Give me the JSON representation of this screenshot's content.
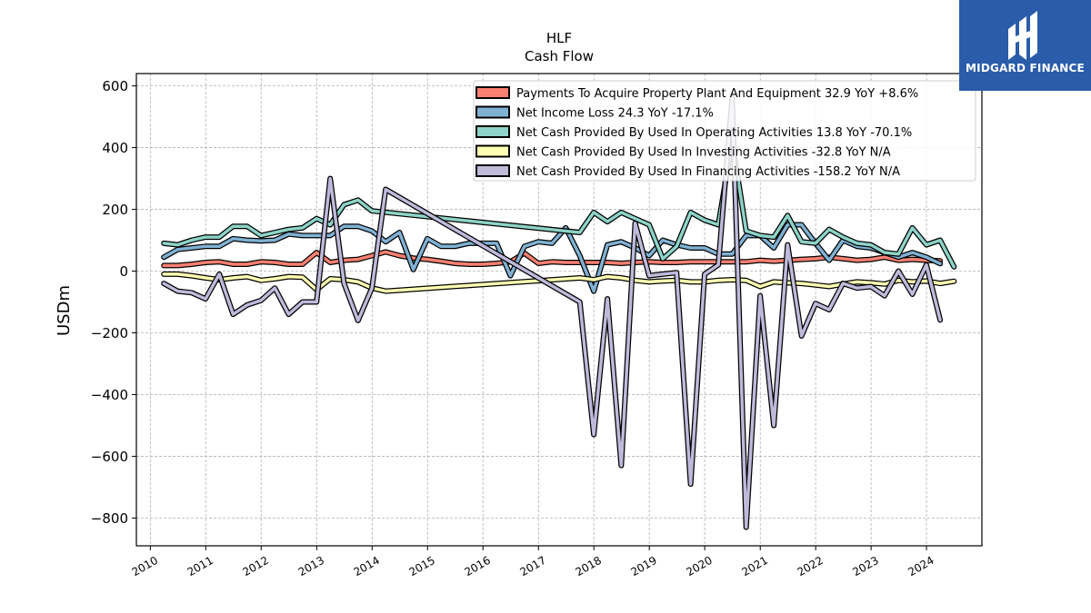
{
  "chart_data": {
    "type": "line",
    "title": "HLF",
    "subtitle": "Cash Flow",
    "xlabel": "",
    "ylabel": "USDm",
    "xlim": [
      "2009-10-01",
      "2024-12-31"
    ],
    "ylim": [
      -890,
      640
    ],
    "yticks": [
      600,
      400,
      200,
      0,
      -200,
      -400,
      -600,
      -800
    ],
    "ytick_labels": [
      "600",
      "400",
      "200",
      "0",
      "−200",
      "−400",
      "−600",
      "−800"
    ],
    "xtick_labels": [
      "2010",
      "2011",
      "2012",
      "2013",
      "2014",
      "2015",
      "2016",
      "2017",
      "2018",
      "2019",
      "2020",
      "2021",
      "2022",
      "2023",
      "2024"
    ],
    "grid": true,
    "legend_position": "top-right",
    "series": [
      {
        "name": "Payments To Acquire Property Plant And Equipment",
        "legend": "Payments To Acquire Property Plant And Equipment  32.9 YoY +8.6%",
        "color": "#fa8072",
        "points": [
          [
            "2010-03-31",
            18
          ],
          [
            "2010-06-30",
            18
          ],
          [
            "2010-09-30",
            22
          ],
          [
            "2010-12-31",
            28
          ],
          [
            "2011-03-31",
            30
          ],
          [
            "2011-06-30",
            22
          ],
          [
            "2011-09-30",
            22
          ],
          [
            "2011-12-31",
            30
          ],
          [
            "2012-03-31",
            28
          ],
          [
            "2012-06-30",
            22
          ],
          [
            "2012-09-30",
            22
          ],
          [
            "2012-12-31",
            60
          ],
          [
            "2013-03-31",
            28
          ],
          [
            "2013-06-30",
            35
          ],
          [
            "2013-09-30",
            38
          ],
          [
            "2013-12-31",
            50
          ],
          [
            "2014-03-31",
            62
          ],
          [
            "2014-06-30",
            50
          ],
          [
            "2014-09-30",
            42
          ],
          [
            "2014-12-31",
            38
          ],
          [
            "2015-03-31",
            32
          ],
          [
            "2015-06-30",
            25
          ],
          [
            "2015-09-30",
            22
          ],
          [
            "2015-12-31",
            22
          ],
          [
            "2016-03-31",
            25
          ],
          [
            "2016-06-30",
            30
          ],
          [
            "2016-09-30",
            58
          ],
          [
            "2016-12-31",
            25
          ],
          [
            "2017-03-31",
            30
          ],
          [
            "2017-06-30",
            28
          ],
          [
            "2017-09-30",
            28
          ],
          [
            "2017-12-31",
            28
          ],
          [
            "2018-03-31",
            28
          ],
          [
            "2018-06-30",
            25
          ],
          [
            "2018-09-30",
            28
          ],
          [
            "2018-12-31",
            30
          ],
          [
            "2019-03-31",
            28
          ],
          [
            "2019-06-30",
            28
          ],
          [
            "2019-09-30",
            30
          ],
          [
            "2019-12-31",
            30
          ],
          [
            "2020-03-31",
            30
          ],
          [
            "2020-06-30",
            30
          ],
          [
            "2020-09-30",
            30
          ],
          [
            "2020-12-31",
            35
          ],
          [
            "2021-03-31",
            32
          ],
          [
            "2021-06-30",
            35
          ],
          [
            "2021-09-30",
            38
          ],
          [
            "2021-12-31",
            40
          ],
          [
            "2022-03-31",
            45
          ],
          [
            "2022-06-30",
            40
          ],
          [
            "2022-09-30",
            35
          ],
          [
            "2022-12-31",
            38
          ],
          [
            "2023-03-31",
            45
          ],
          [
            "2023-06-30",
            35
          ],
          [
            "2023-09-30",
            38
          ],
          [
            "2023-12-31",
            35
          ],
          [
            "2024-03-31",
            32.9
          ]
        ]
      },
      {
        "name": "Net Income Loss",
        "legend": "Net Income Loss  24.3 YoY -17.1%",
        "color": "#80b1d3",
        "points": [
          [
            "2010-03-31",
            45
          ],
          [
            "2010-06-30",
            70
          ],
          [
            "2010-09-30",
            75
          ],
          [
            "2010-12-31",
            80
          ],
          [
            "2011-03-31",
            80
          ],
          [
            "2011-06-30",
            105
          ],
          [
            "2011-09-30",
            100
          ],
          [
            "2011-12-31",
            98
          ],
          [
            "2012-03-31",
            100
          ],
          [
            "2012-06-30",
            120
          ],
          [
            "2012-09-30",
            115
          ],
          [
            "2012-12-31",
            115
          ],
          [
            "2013-03-31",
            115
          ],
          [
            "2013-06-30",
            145
          ],
          [
            "2013-09-30",
            145
          ],
          [
            "2013-12-31",
            130
          ],
          [
            "2014-03-31",
            95
          ],
          [
            "2014-06-30",
            125
          ],
          [
            "2014-09-30",
            5
          ],
          [
            "2014-12-31",
            105
          ],
          [
            "2015-03-31",
            80
          ],
          [
            "2015-06-30",
            80
          ],
          [
            "2015-09-30",
            90
          ],
          [
            "2015-12-31",
            90
          ],
          [
            "2016-03-31",
            90
          ],
          [
            "2016-06-30",
            -15
          ],
          [
            "2016-09-30",
            80
          ],
          [
            "2016-12-31",
            95
          ],
          [
            "2017-03-31",
            90
          ],
          [
            "2017-06-30",
            140
          ],
          [
            "2017-09-30",
            50
          ],
          [
            "2017-12-31",
            -65
          ],
          [
            "2018-03-31",
            85
          ],
          [
            "2018-06-30",
            95
          ],
          [
            "2018-09-30",
            75
          ],
          [
            "2018-12-31",
            50
          ],
          [
            "2019-03-31",
            100
          ],
          [
            "2019-06-30",
            85
          ],
          [
            "2019-09-30",
            75
          ],
          [
            "2019-12-31",
            75
          ],
          [
            "2020-03-31",
            55
          ],
          [
            "2020-06-30",
            55
          ],
          [
            "2020-09-30",
            115
          ],
          [
            "2020-12-31",
            115
          ],
          [
            "2021-03-31",
            75
          ],
          [
            "2021-06-30",
            150
          ],
          [
            "2021-09-30",
            150
          ],
          [
            "2021-12-31",
            90
          ],
          [
            "2022-03-31",
            35
          ],
          [
            "2022-06-30",
            100
          ],
          [
            "2022-09-30",
            80
          ],
          [
            "2022-12-31",
            75
          ],
          [
            "2023-03-31",
            60
          ],
          [
            "2023-06-30",
            45
          ],
          [
            "2023-09-30",
            60
          ],
          [
            "2023-12-31",
            45
          ],
          [
            "2024-03-31",
            24.3
          ]
        ]
      },
      {
        "name": "Net Cash Provided By Used In Operating Activities",
        "legend": "Net Cash Provided By Used In Operating Activities  13.8 YoY -70.1%",
        "color": "#8dd3c7",
        "points": [
          [
            "2010-03-31",
            90
          ],
          [
            "2010-06-30",
            85
          ],
          [
            "2010-09-30",
            100
          ],
          [
            "2010-12-31",
            110
          ],
          [
            "2011-03-31",
            110
          ],
          [
            "2011-06-30",
            145
          ],
          [
            "2011-09-30",
            145
          ],
          [
            "2011-12-31",
            115
          ],
          [
            "2012-03-31",
            125
          ],
          [
            "2012-06-30",
            135
          ],
          [
            "2012-09-30",
            140
          ],
          [
            "2012-12-31",
            170
          ],
          [
            "2013-03-31",
            150
          ],
          [
            "2013-06-30",
            215
          ],
          [
            "2013-09-30",
            230
          ],
          [
            "2013-12-31",
            195
          ],
          [
            "2017-09-30",
            125
          ],
          [
            "2017-12-31",
            190
          ],
          [
            "2018-03-31",
            160
          ],
          [
            "2018-06-30",
            190
          ],
          [
            "2018-09-30",
            170
          ],
          [
            "2018-12-31",
            150
          ],
          [
            "2019-03-31",
            40
          ],
          [
            "2019-06-30",
            80
          ],
          [
            "2019-09-30",
            190
          ],
          [
            "2019-12-31",
            165
          ],
          [
            "2020-03-31",
            150
          ],
          [
            "2020-06-30",
            420
          ],
          [
            "2020-09-30",
            130
          ],
          [
            "2020-12-31",
            115
          ],
          [
            "2021-03-31",
            110
          ],
          [
            "2021-06-30",
            180
          ],
          [
            "2021-09-30",
            95
          ],
          [
            "2021-12-31",
            90
          ],
          [
            "2022-03-31",
            135
          ],
          [
            "2022-06-30",
            110
          ],
          [
            "2022-09-30",
            90
          ],
          [
            "2022-12-31",
            85
          ],
          [
            "2023-03-31",
            60
          ],
          [
            "2023-06-30",
            55
          ],
          [
            "2023-09-30",
            140
          ],
          [
            "2023-12-31",
            85
          ],
          [
            "2024-03-31",
            100
          ],
          [
            "2024-06-30",
            13.8
          ]
        ]
      },
      {
        "name": "Net Cash Provided By Used In Investing Activities",
        "legend": "Net Cash Provided By Used In Investing Activities  -32.8 YoY N/A",
        "color": "#ffffb3",
        "points": [
          [
            "2010-03-31",
            -10
          ],
          [
            "2010-06-30",
            -10
          ],
          [
            "2010-09-30",
            -15
          ],
          [
            "2010-12-31",
            -22
          ],
          [
            "2011-03-31",
            -28
          ],
          [
            "2011-06-30",
            -22
          ],
          [
            "2011-09-30",
            -18
          ],
          [
            "2011-12-31",
            -30
          ],
          [
            "2012-03-31",
            -25
          ],
          [
            "2012-06-30",
            -18
          ],
          [
            "2012-09-30",
            -20
          ],
          [
            "2012-12-31",
            -60
          ],
          [
            "2013-03-31",
            -25
          ],
          [
            "2013-06-30",
            -28
          ],
          [
            "2013-09-30",
            -35
          ],
          [
            "2013-12-31",
            -55
          ],
          [
            "2014-03-31",
            -65
          ],
          [
            "2017-09-30",
            -22
          ],
          [
            "2017-12-31",
            -28
          ],
          [
            "2018-03-31",
            -18
          ],
          [
            "2018-06-30",
            -22
          ],
          [
            "2018-09-30",
            -30
          ],
          [
            "2018-12-31",
            -35
          ],
          [
            "2019-03-31",
            -32
          ],
          [
            "2019-06-30",
            -30
          ],
          [
            "2019-09-30",
            -35
          ],
          [
            "2019-12-31",
            -35
          ],
          [
            "2020-03-31",
            -30
          ],
          [
            "2020-06-30",
            -28
          ],
          [
            "2020-09-30",
            -30
          ],
          [
            "2020-12-31",
            -50
          ],
          [
            "2021-03-31",
            -35
          ],
          [
            "2021-06-30",
            -38
          ],
          [
            "2021-09-30",
            -40
          ],
          [
            "2021-12-31",
            -45
          ],
          [
            "2022-03-31",
            -50
          ],
          [
            "2022-06-30",
            -42
          ],
          [
            "2022-09-30",
            -35
          ],
          [
            "2022-12-31",
            -38
          ],
          [
            "2023-03-31",
            -42
          ],
          [
            "2023-06-30",
            -30
          ],
          [
            "2023-09-30",
            -35
          ],
          [
            "2023-12-31",
            -32
          ],
          [
            "2024-03-31",
            -40
          ],
          [
            "2024-06-30",
            -32.8
          ]
        ]
      },
      {
        "name": "Net Cash Provided By Used In Financing Activities",
        "legend": "Net Cash Provided By Used In Financing Activities  -158.2 YoY N/A",
        "color": "#bebada",
        "points": [
          [
            "2010-03-31",
            -40
          ],
          [
            "2010-06-30",
            -65
          ],
          [
            "2010-09-30",
            -70
          ],
          [
            "2010-12-31",
            -90
          ],
          [
            "2011-03-31",
            -10
          ],
          [
            "2011-06-30",
            -140
          ],
          [
            "2011-09-30",
            -110
          ],
          [
            "2011-12-31",
            -95
          ],
          [
            "2012-03-31",
            -55
          ],
          [
            "2012-06-30",
            -140
          ],
          [
            "2012-09-30",
            -100
          ],
          [
            "2012-12-31",
            -100
          ],
          [
            "2013-03-31",
            300
          ],
          [
            "2013-06-30",
            -40
          ],
          [
            "2013-09-30",
            -160
          ],
          [
            "2013-12-31",
            -55
          ],
          [
            "2014-03-31",
            265
          ],
          [
            "2017-09-30",
            -100
          ],
          [
            "2017-12-31",
            -530
          ],
          [
            "2018-03-31",
            -90
          ],
          [
            "2018-06-30",
            -630
          ],
          [
            "2018-09-30",
            155
          ],
          [
            "2018-12-31",
            -15
          ],
          [
            "2019-03-31",
            -10
          ],
          [
            "2019-06-30",
            -5
          ],
          [
            "2019-09-30",
            -690
          ],
          [
            "2019-12-31",
            -10
          ],
          [
            "2020-03-31",
            20
          ],
          [
            "2020-06-30",
            560
          ],
          [
            "2020-09-30",
            -830
          ],
          [
            "2020-12-31",
            -80
          ],
          [
            "2021-03-31",
            -500
          ],
          [
            "2021-06-30",
            85
          ],
          [
            "2021-09-30",
            -210
          ],
          [
            "2021-12-31",
            -105
          ],
          [
            "2022-03-31",
            -125
          ],
          [
            "2022-06-30",
            -40
          ],
          [
            "2022-09-30",
            -55
          ],
          [
            "2022-12-31",
            -50
          ],
          [
            "2023-03-31",
            -80
          ],
          [
            "2023-06-30",
            0
          ],
          [
            "2023-09-30",
            -75
          ],
          [
            "2023-12-31",
            20
          ],
          [
            "2024-03-31",
            -158.2
          ]
        ]
      }
    ]
  },
  "logo": {
    "text": "MIDGARD FINANCE",
    "background": "#2a5caa",
    "icon": "midgard-logo-icon"
  }
}
